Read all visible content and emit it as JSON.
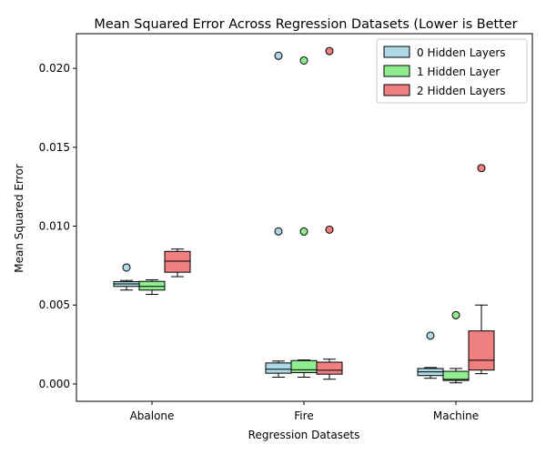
{
  "chart_data": {
    "type": "box",
    "title": "Mean Squared Error Across Regression Datasets (Lower is Better",
    "xlabel": "Regression Datasets",
    "ylabel": "Mean Squared Error",
    "categories": [
      "Abalone",
      "Fire",
      "Machine"
    ],
    "ylim": [
      -0.0011,
      0.0222
    ],
    "yticks": [
      0.0,
      0.005,
      0.01,
      0.015,
      0.02
    ],
    "ytick_labels": [
      "0.000",
      "0.005",
      "0.010",
      "0.015",
      "0.020"
    ],
    "legend_position": "top-right",
    "grid": false,
    "series": [
      {
        "name": "0 Hidden Layers",
        "color": "#add8e6",
        "boxes": [
          {
            "whislo": 0.00595,
            "q1": 0.00618,
            "med": 0.00634,
            "q3": 0.00648,
            "whishi": 0.00656,
            "fliers": [
              0.00738
            ]
          },
          {
            "whislo": 0.00043,
            "q1": 0.00068,
            "med": 0.00093,
            "q3": 0.00133,
            "whishi": 0.00145,
            "fliers": [
              0.00967,
              0.0208
            ]
          },
          {
            "whislo": 0.00036,
            "q1": 0.00053,
            "med": 0.00077,
            "q3": 0.00098,
            "whishi": 0.00104,
            "fliers": [
              0.00306
            ]
          }
        ]
      },
      {
        "name": "1 Hidden Layer",
        "color": "#90ee90",
        "boxes": [
          {
            "whislo": 0.00568,
            "q1": 0.00595,
            "med": 0.00618,
            "q3": 0.0065,
            "whishi": 0.0066,
            "fliers": []
          },
          {
            "whislo": 0.00043,
            "q1": 0.00072,
            "med": 0.0009,
            "q3": 0.00148,
            "whishi": 0.00152,
            "fliers": [
              0.00966,
              0.0205
            ]
          },
          {
            "whislo": 7e-05,
            "q1": 0.00022,
            "med": 0.00029,
            "q3": 0.0008,
            "whishi": 0.00098,
            "fliers": [
              0.00436
            ]
          }
        ]
      },
      {
        "name": "2 Hidden Layers",
        "color": "#f08080",
        "boxes": [
          {
            "whislo": 0.0068,
            "q1": 0.00708,
            "med": 0.00778,
            "q3": 0.0084,
            "whishi": 0.00855,
            "fliers": []
          },
          {
            "whislo": 0.0003,
            "q1": 0.00062,
            "med": 0.00087,
            "q3": 0.00138,
            "whishi": 0.00157,
            "fliers": [
              0.00978,
              0.0211
            ]
          },
          {
            "whislo": 0.00065,
            "q1": 0.00088,
            "med": 0.0015,
            "q3": 0.00336,
            "whishi": 0.005,
            "fliers": [
              0.01368
            ]
          }
        ]
      }
    ]
  }
}
